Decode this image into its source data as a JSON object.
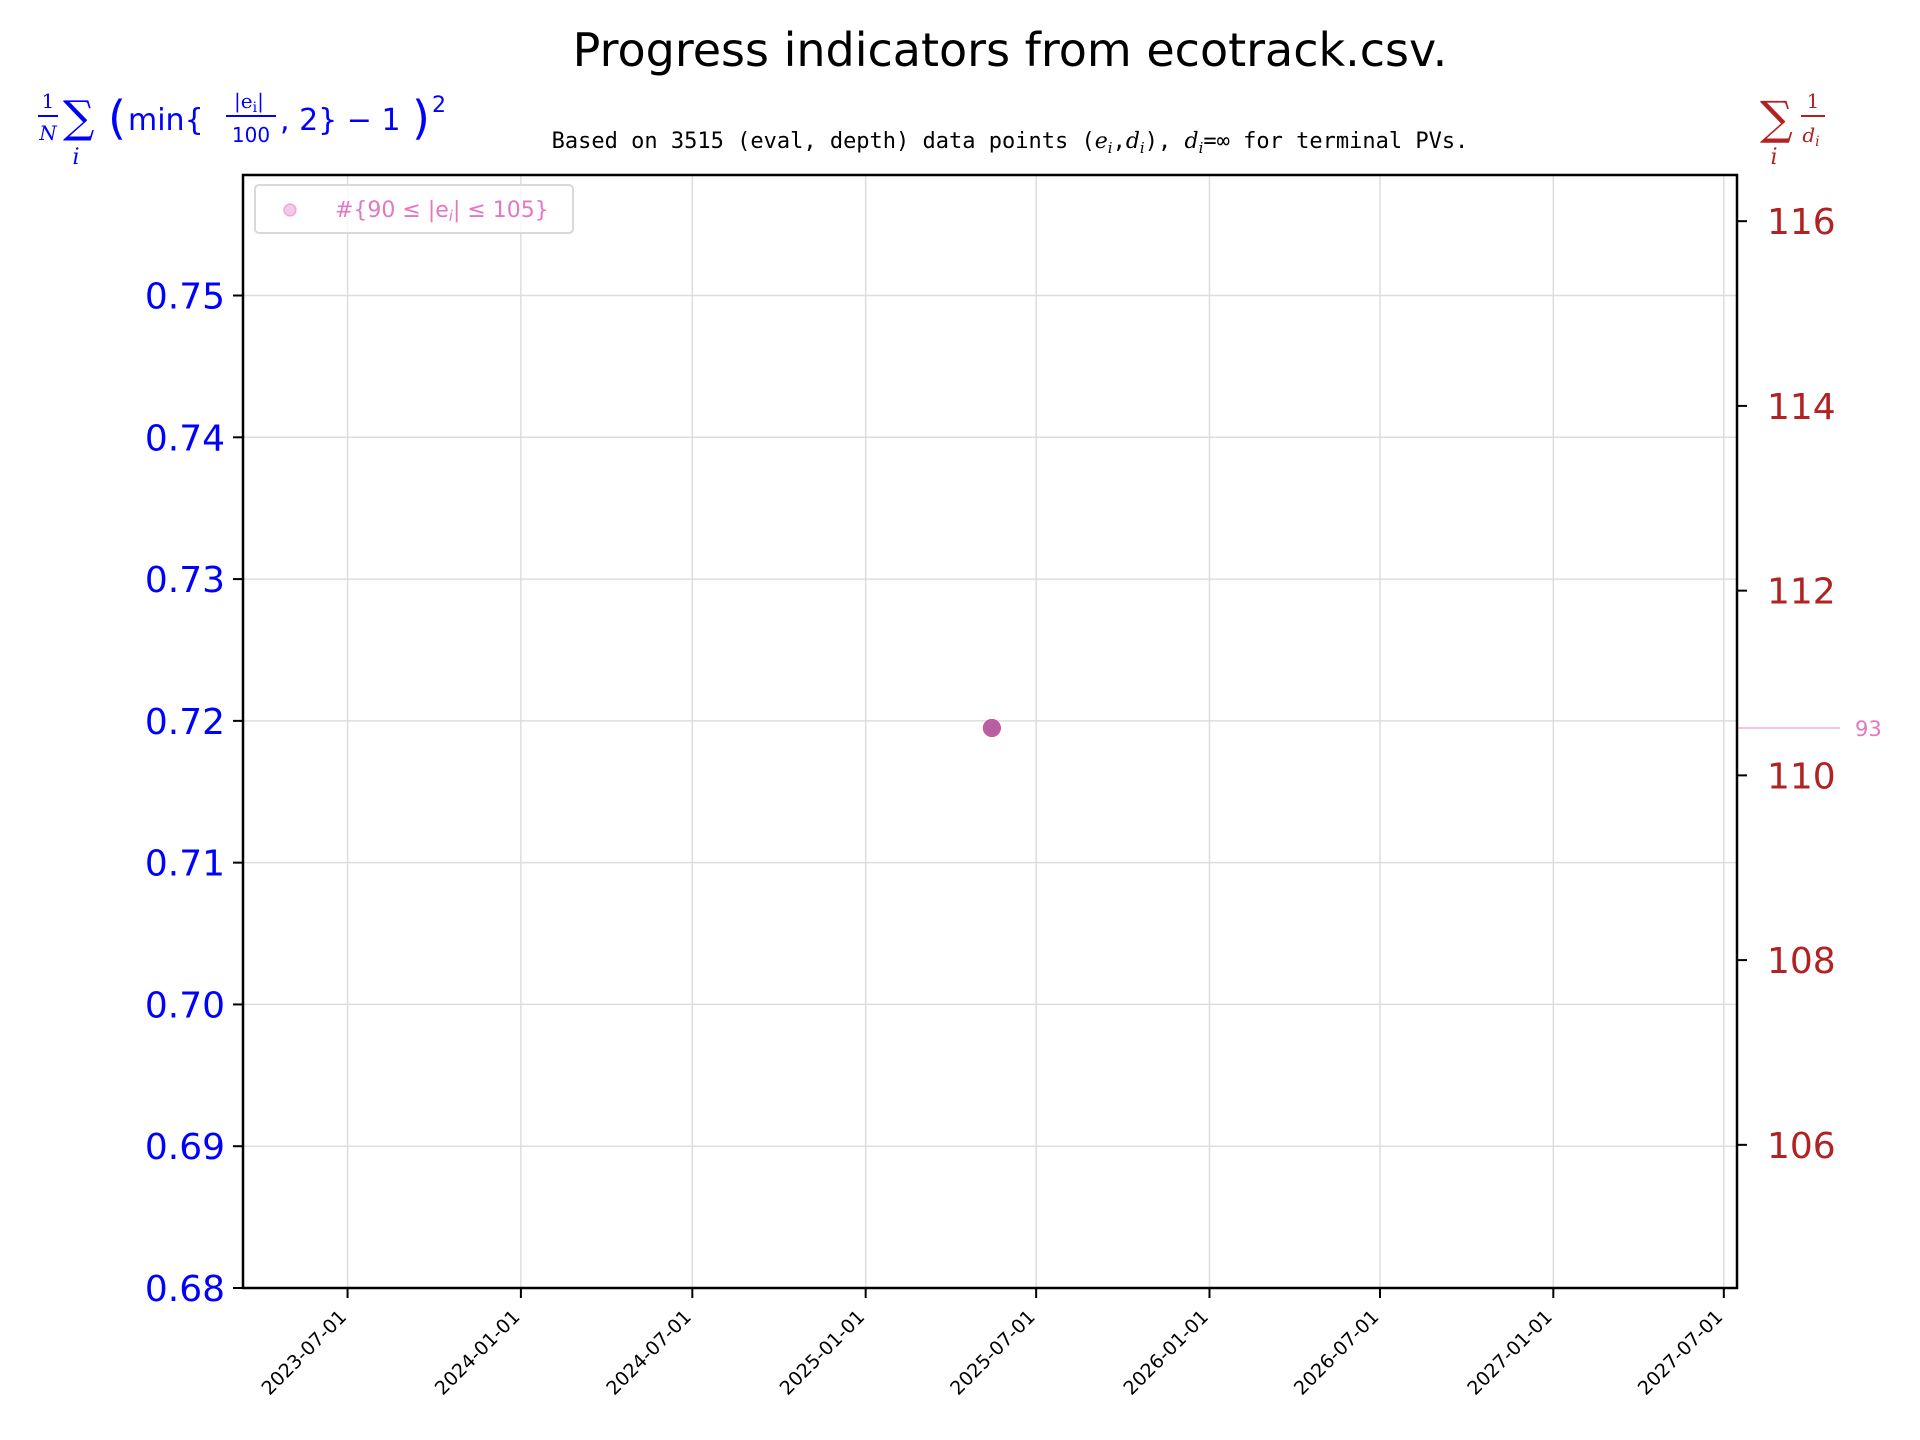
{
  "chart_data": {
    "type": "scatter",
    "title": "Progress indicators from ecotrack.csv.",
    "subtitle": "Based on 3515 (eval, depth) data points (e_i,d_i), d_i=∞ for terminal PVs.",
    "subtitle_parts": {
      "prefix": "Based on 3515 (eval, depth) data points (",
      "e": "e",
      "d": "d",
      "i": "i",
      "comma": ",",
      "close": "), ",
      "eq_inf": "=∞",
      "suffix": " for terminal PVs."
    },
    "left_axis": {
      "label": "1/N Σ_i (min{|e_i|/100, 2} − 1)^2",
      "label_parts": {
        "one": "1",
        "N": "N",
        "sigma": "∑",
        "i": "i",
        "lparen": "(",
        "min": "min{",
        "abs_e": "|e",
        "abs_i": "i",
        "abs_close": "|",
        "hundred": "100",
        "rest": ", 2} − 1",
        "rparen": ")",
        "sq": "2"
      },
      "ylim": [
        0.68,
        0.7585
      ],
      "ticks": [
        0.68,
        0.69,
        0.7,
        0.71,
        0.72,
        0.73,
        0.74,
        0.75
      ],
      "tick_labels": [
        "0.68",
        "0.69",
        "0.70",
        "0.71",
        "0.72",
        "0.73",
        "0.74",
        "0.75"
      ],
      "color": "#0000ff"
    },
    "right_axis": {
      "label": "Σ_i 1/d_i",
      "label_parts": {
        "sigma": "∑",
        "i": "i",
        "one": "1",
        "d": "d"
      },
      "ylim": [
        104.45,
        116.5
      ],
      "ticks": [
        106,
        108,
        110,
        112,
        114,
        116
      ],
      "tick_labels": [
        "106",
        "108",
        "110",
        "112",
        "114",
        "116"
      ],
      "color": "#b22222"
    },
    "x_axis": {
      "scale": "date",
      "xlim": [
        "2023-03-12",
        "2027-07-15"
      ],
      "ticks": [
        "2023-07-01",
        "2024-01-01",
        "2024-07-01",
        "2025-01-01",
        "2025-07-01",
        "2026-01-01",
        "2026-07-01",
        "2027-01-01",
        "2027-07-01"
      ],
      "tick_labels": [
        "2023-07-01",
        "2024-01-01",
        "2024-07-01",
        "2025-01-01",
        "2025-07-01",
        "2026-01-01",
        "2026-07-01",
        "2027-01-01",
        "2027-07-01"
      ]
    },
    "grid": true,
    "legend": {
      "placement": "upper left",
      "entries": [
        {
          "label": "#{90 ≤ |e_i| ≤ 105}",
          "color": "#e377c2"
        }
      ],
      "label_parts": {
        "hash": "#{90 ≤ |e",
        "i": "i",
        "close": "| ≤ 105}"
      }
    },
    "series": [
      {
        "axis": "left",
        "color": "#0000ff",
        "points": [
          {
            "x": "2025-05-15",
            "y": 0.7195
          }
        ]
      },
      {
        "axis": "right",
        "color": "#b22222",
        "points": [
          {
            "x": "2025-05-15",
            "y": 110.0
          }
        ]
      },
      {
        "axis": "count",
        "name": "#{90 ≤ |e_i| ≤ 105}",
        "color": "#e377c2",
        "points": [
          {
            "x": "2025-05-15",
            "y": 93
          }
        ]
      }
    ],
    "annotations": [
      {
        "text": "93",
        "color": "#e377c2",
        "attached_to": "count series last value"
      }
    ]
  }
}
